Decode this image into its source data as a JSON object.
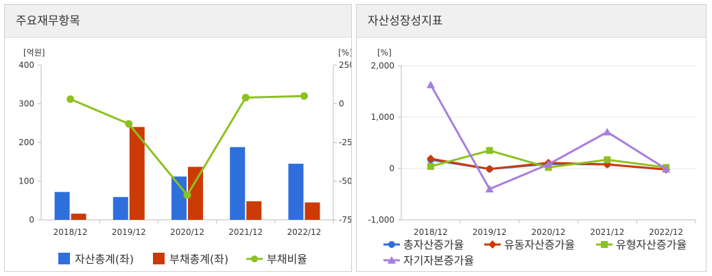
{
  "panels": {
    "left_title": "주요재무항목",
    "right_title": "자산성장성지표"
  },
  "colors": {
    "blue": "#2e6fdc",
    "red": "#cc3a06",
    "green": "#8cc21f",
    "purple": "#a77ee0",
    "axis": "#bbbbbb",
    "grid": "#e4e4e4",
    "tick": "#333333"
  },
  "chart_data": [
    {
      "type": "bar+line",
      "title": "주요재무항목",
      "categories": [
        "2018/12",
        "2019/12",
        "2020/12",
        "2021/12",
        "2022/12"
      ],
      "left_unit": "[억원]",
      "right_unit": "[%]",
      "ylim": [
        0,
        400
      ],
      "y_ticks": [
        "400",
        "300",
        "200",
        "100",
        "0"
      ],
      "y2lim": [
        -750,
        250
      ],
      "y2_ticks": [
        "250",
        "0",
        "-250",
        "-500",
        "-750"
      ],
      "series": [
        {
          "name": "자산총계(좌)",
          "type": "bar",
          "axis": "left",
          "color": "#2e6fdc",
          "values": [
            72,
            59,
            112,
            188,
            145
          ]
        },
        {
          "name": "부채총계(좌)",
          "type": "bar",
          "axis": "left",
          "color": "#cc3a06",
          "values": [
            16,
            240,
            137,
            48,
            45
          ]
        },
        {
          "name": "부채비율",
          "type": "line",
          "axis": "right",
          "color": "#8cc21f",
          "values": [
            30,
            -130,
            -590,
            40,
            50
          ]
        }
      ]
    },
    {
      "type": "line",
      "title": "자산성장성지표",
      "categories": [
        "2018/12",
        "2019/12",
        "2020/12",
        "2021/12",
        "2022/12"
      ],
      "unit": "[%]",
      "ylim": [
        -1000,
        2000
      ],
      "y_ticks": [
        "2,000",
        "1,000",
        "0",
        "-1,000"
      ],
      "series": [
        {
          "name": "총자산증가율",
          "marker": "circle",
          "color": "#2e6fdc",
          "values": [
            170,
            -10,
            90,
            80,
            -20
          ]
        },
        {
          "name": "유동자산증가율",
          "marker": "diamond",
          "color": "#cc3a06",
          "values": [
            190,
            -10,
            110,
            80,
            -20
          ]
        },
        {
          "name": "유형자산증가율",
          "marker": "square",
          "color": "#8cc21f",
          "values": [
            40,
            350,
            20,
            170,
            20
          ]
        },
        {
          "name": "자기자본증가율",
          "marker": "triangle",
          "color": "#a77ee0",
          "values": [
            1630,
            -400,
            80,
            710,
            -10
          ]
        }
      ]
    }
  ]
}
